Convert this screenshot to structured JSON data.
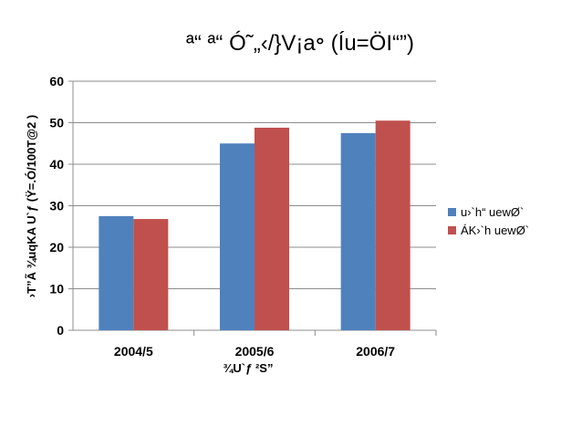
{
  "chart_data": {
    "type": "bar",
    "title": "ª“ ª“ Ó˜„‹/}V¡a॰ (Íu=ÖI“”)",
    "xlabel": "¾U`ƒ ²S”",
    "ylabel": "›T”Ã  ¾uqKA U`ƒ (Ÿ=.Ó/100T@2 )",
    "categories": [
      "2004/5",
      "2005/6",
      "2006/7"
    ],
    "series": [
      {
        "name": "u›`h“ uewØ`",
        "color": "#4F81BD",
        "values": [
          27.5,
          45,
          47.5
        ]
      },
      {
        "name": "ÁK›`h uewØ`",
        "color": "#C0504D",
        "values": [
          26.8,
          48.8,
          50.5
        ]
      }
    ],
    "ylim": [
      0,
      60
    ],
    "yticks": [
      0,
      10,
      20,
      30,
      40,
      50,
      60
    ],
    "grid": true,
    "legend": "right"
  }
}
